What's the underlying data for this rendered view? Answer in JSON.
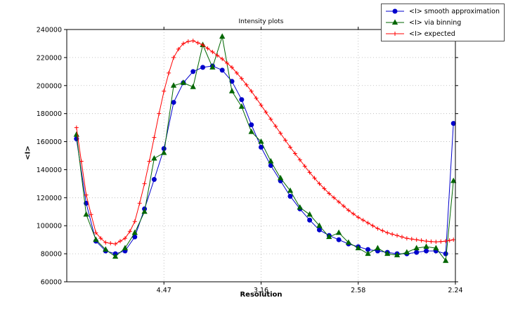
{
  "chart_data": {
    "type": "line",
    "title": "Intensity plots",
    "xlabel": "Resolution",
    "ylabel": "<I>",
    "grid": true,
    "grid_color": "#b3b3b3",
    "legend_position": "upper right",
    "axis_color": "#000000",
    "x_axis": {
      "lim": [
        0,
        0.2
      ],
      "ticks": [
        {
          "value": 0.05,
          "label": "4.47"
        },
        {
          "value": 0.1,
          "label": "3.16"
        },
        {
          "value": 0.15,
          "label": "2.58"
        },
        {
          "value": 0.2,
          "label": "2.24"
        }
      ]
    },
    "y_axis": {
      "lim": [
        60000,
        240000
      ],
      "ticks": [
        60000,
        80000,
        100000,
        120000,
        140000,
        160000,
        180000,
        200000,
        220000,
        240000
      ]
    },
    "series": [
      {
        "name": "<I> smooth approximation",
        "color": "#0000cc",
        "marker": "circle",
        "x": [
          0.005,
          0.01,
          0.015,
          0.02,
          0.025,
          0.03,
          0.035,
          0.04,
          0.045,
          0.05,
          0.055,
          0.06,
          0.065,
          0.07,
          0.075,
          0.08,
          0.085,
          0.09,
          0.095,
          0.1,
          0.105,
          0.11,
          0.115,
          0.12,
          0.125,
          0.13,
          0.135,
          0.14,
          0.145,
          0.15,
          0.155,
          0.16,
          0.165,
          0.17,
          0.175,
          0.18,
          0.185,
          0.19,
          0.195,
          0.199
        ],
        "y": [
          162000,
          116000,
          89000,
          82000,
          80000,
          82000,
          92000,
          112000,
          133000,
          155000,
          188000,
          202000,
          210000,
          213000,
          214000,
          211000,
          203000,
          190000,
          172000,
          156000,
          143000,
          132000,
          121000,
          112000,
          104000,
          97000,
          93000,
          90000,
          87000,
          85000,
          83000,
          82000,
          81000,
          80000,
          80000,
          81000,
          82000,
          82000,
          80000,
          173000
        ]
      },
      {
        "name": "<I> via binning",
        "color": "#006600",
        "marker": "triangle",
        "x": [
          0.005,
          0.01,
          0.015,
          0.02,
          0.025,
          0.03,
          0.035,
          0.04,
          0.045,
          0.05,
          0.055,
          0.06,
          0.065,
          0.07,
          0.075,
          0.08,
          0.085,
          0.09,
          0.095,
          0.1,
          0.105,
          0.11,
          0.115,
          0.12,
          0.125,
          0.13,
          0.135,
          0.14,
          0.145,
          0.15,
          0.155,
          0.16,
          0.165,
          0.17,
          0.175,
          0.18,
          0.185,
          0.19,
          0.195,
          0.199
        ],
        "y": [
          165000,
          108000,
          90000,
          83000,
          78000,
          84000,
          95000,
          110000,
          148000,
          152000,
          200000,
          202000,
          199000,
          229000,
          213000,
          235000,
          196000,
          185000,
          167000,
          160000,
          146000,
          134000,
          125000,
          113000,
          108000,
          100000,
          92000,
          95000,
          88000,
          84000,
          80000,
          84000,
          80000,
          79000,
          81000,
          84000,
          85000,
          84000,
          75000,
          132000
        ]
      },
      {
        "name": "<I> expected",
        "color": "#ff0000",
        "marker": "plus",
        "x": [
          0.005,
          0.0075,
          0.01,
          0.0125,
          0.015,
          0.0175,
          0.02,
          0.0225,
          0.025,
          0.0275,
          0.03,
          0.0325,
          0.035,
          0.0375,
          0.04,
          0.0425,
          0.045,
          0.0475,
          0.05,
          0.0525,
          0.055,
          0.0575,
          0.06,
          0.0625,
          0.065,
          0.0675,
          0.07,
          0.0725,
          0.075,
          0.0775,
          0.08,
          0.0825,
          0.085,
          0.0875,
          0.09,
          0.0925,
          0.095,
          0.0975,
          0.1,
          0.1025,
          0.105,
          0.1075,
          0.11,
          0.1125,
          0.115,
          0.1175,
          0.12,
          0.1225,
          0.125,
          0.1275,
          0.13,
          0.1325,
          0.135,
          0.1375,
          0.14,
          0.1425,
          0.145,
          0.1475,
          0.15,
          0.1525,
          0.155,
          0.1575,
          0.16,
          0.1625,
          0.165,
          0.1675,
          0.17,
          0.1725,
          0.175,
          0.1775,
          0.18,
          0.1825,
          0.185,
          0.1875,
          0.19,
          0.1925,
          0.195,
          0.197,
          0.199
        ],
        "y": [
          170000,
          146000,
          122000,
          108000,
          95000,
          91000,
          88000,
          87500,
          87000,
          89000,
          91000,
          96000,
          103000,
          116000,
          130000,
          146000,
          163000,
          180000,
          196000,
          209000,
          220000,
          226000,
          230000,
          231500,
          232000,
          230500,
          229000,
          226500,
          224000,
          221500,
          219000,
          216000,
          213000,
          209000,
          205000,
          200500,
          196000,
          191000,
          186000,
          181000,
          176000,
          171000,
          166000,
          161000,
          156000,
          151500,
          147000,
          142500,
          138000,
          134000,
          130000,
          126500,
          123000,
          120000,
          117000,
          114000,
          111000,
          108500,
          106000,
          104000,
          102000,
          100000,
          98000,
          96500,
          95000,
          94000,
          93000,
          92000,
          91000,
          90500,
          90000,
          89500,
          89000,
          88700,
          88500,
          88700,
          89000,
          89500,
          90000
        ]
      }
    ]
  }
}
